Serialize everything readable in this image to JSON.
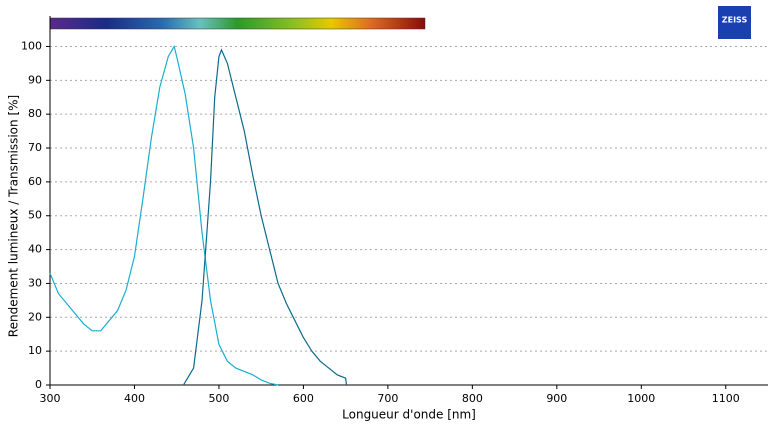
{
  "chart_data": {
    "type": "line",
    "xlabel": "Longueur d'onde [nm]",
    "ylabel": "Rendement lumineux / Transmission [%]",
    "logo": "ZEISS",
    "xlim": [
      300,
      1150
    ],
    "ylim": [
      0,
      109
    ],
    "xticks": [
      300,
      400,
      500,
      600,
      700,
      800,
      900,
      1000,
      1100
    ],
    "yticks": [
      0,
      10,
      20,
      30,
      40,
      50,
      60,
      70,
      80,
      90,
      100
    ],
    "grid": true,
    "series": [
      {
        "color": "#1aaed0",
        "x": [
          300,
          310,
          320,
          330,
          340,
          350,
          360,
          370,
          380,
          390,
          400,
          410,
          420,
          430,
          440,
          447,
          450,
          460,
          470,
          480,
          490,
          500,
          510,
          520,
          530,
          540,
          550,
          560,
          570
        ],
        "values": [
          33,
          27,
          24,
          21,
          18,
          16,
          16,
          19,
          22,
          28,
          38,
          55,
          73,
          88,
          97,
          100,
          97,
          86,
          70,
          45,
          25,
          12,
          7,
          5,
          4,
          3,
          1.5,
          0.5,
          0
        ]
      },
      {
        "color": "#0b6a8c",
        "x": [
          458,
          470,
          480,
          490,
          495,
          500,
          503,
          510,
          520,
          530,
          540,
          550,
          560,
          570,
          580,
          590,
          600,
          610,
          620,
          630,
          640,
          650,
          651
        ],
        "values": [
          0,
          5,
          25,
          60,
          85,
          97,
          99,
          95,
          85,
          75,
          62,
          50,
          40,
          30,
          24,
          19,
          14,
          10,
          7,
          5,
          3,
          2,
          0
        ]
      }
    ]
  }
}
